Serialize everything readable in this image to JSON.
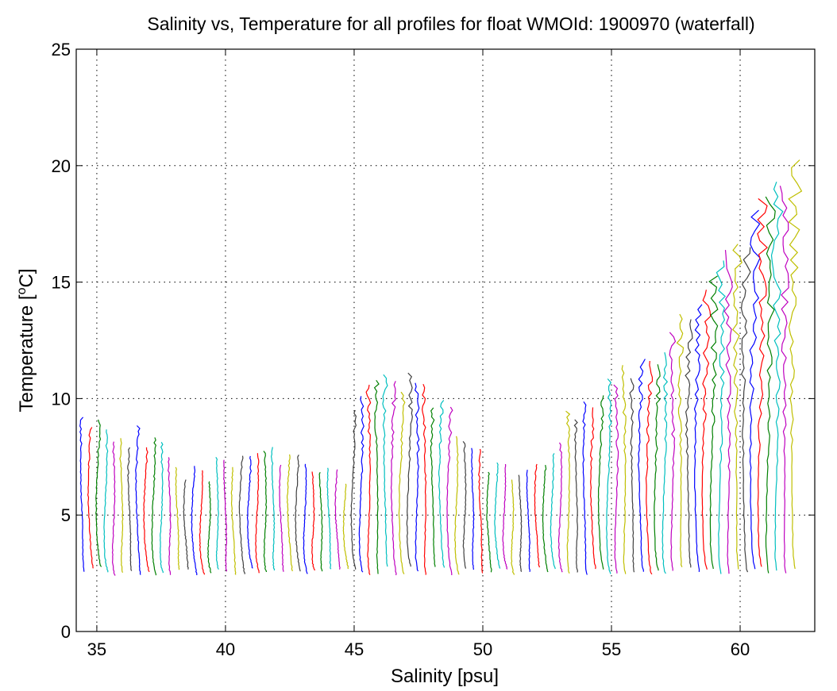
{
  "chart_data": {
    "type": "line",
    "title": "Salinity vs, Temperature for all profiles for float WMOId: 1900970 (waterfall)",
    "xlabel": "Salinity [psu]",
    "ylabel_main": "Temperature [",
    "ylabel_sup": "o",
    "ylabel_tail": "C]",
    "xlim": [
      34.2,
      62.9
    ],
    "ylim": [
      0,
      25
    ],
    "xticks": [
      35,
      40,
      45,
      50,
      55,
      60
    ],
    "yticks": [
      0,
      5,
      10,
      15,
      20,
      25
    ],
    "grid": true,
    "legend": "none",
    "waterfall": {
      "first_profile_offset": 34.5,
      "profile_offset_step": 0.31,
      "profile_count": 90,
      "bottom_temperature_range": [
        2.4,
        2.8
      ],
      "surface_temperature_range": [
        5.7,
        20.5
      ]
    },
    "colors": [
      "#0000ff",
      "#ff0000",
      "#008000",
      "#00bfbf",
      "#bf00bf",
      "#bfbf00",
      "#404040"
    ]
  }
}
